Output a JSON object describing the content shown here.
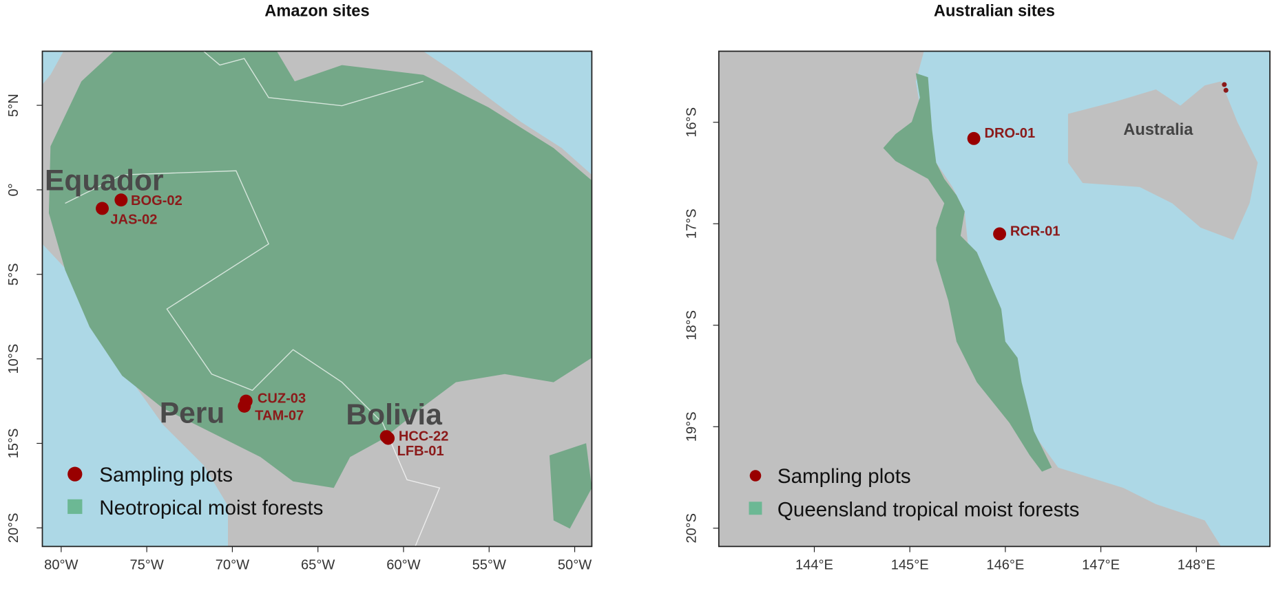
{
  "maps": [
    {
      "title": "Amazon sites",
      "xlim": [
        -81.1,
        -49
      ],
      "ylim": [
        -21.1,
        8.2
      ],
      "xticks": [
        {
          "value": -80,
          "label": "80°W"
        },
        {
          "value": -75,
          "label": "75°W"
        },
        {
          "value": -70,
          "label": "70°W"
        },
        {
          "value": -65,
          "label": "65°W"
        },
        {
          "value": -60,
          "label": "60°W"
        },
        {
          "value": -55,
          "label": "55°W"
        },
        {
          "value": -50,
          "label": "50°W"
        }
      ],
      "yticks": [
        {
          "value": 5,
          "label": "5°N"
        },
        {
          "value": 0,
          "label": "0°"
        },
        {
          "value": -5,
          "label": "5°S"
        },
        {
          "value": -10,
          "label": "10°S"
        },
        {
          "value": -15,
          "label": "15°S"
        },
        {
          "value": -20,
          "label": "20°S"
        }
      ],
      "sites": [
        {
          "name": "BOG-02",
          "lon": -76.5,
          "lat": -0.6
        },
        {
          "name": "JAS-02",
          "lon": -77.6,
          "lat": -1.1
        },
        {
          "name": "CUZ-03",
          "lon": -69.2,
          "lat": -12.5
        },
        {
          "name": "TAM-07",
          "lon": -69.3,
          "lat": -12.8
        },
        {
          "name": "HCC-22",
          "lon": -61.0,
          "lat": -14.6
        },
        {
          "name": "LFB-01",
          "lon": -60.9,
          "lat": -14.7
        }
      ],
      "country_labels": [
        "Equador",
        "Peru",
        "Bolivia"
      ],
      "legend": [
        "Sampling plots",
        "Neotropical moist forests"
      ]
    },
    {
      "title": "Australian sites",
      "xlim": [
        143,
        148.77
      ],
      "ylim": [
        -20.18,
        -15.3
      ],
      "xticks": [
        {
          "value": 144,
          "label": "144°E"
        },
        {
          "value": 145,
          "label": "145°E"
        },
        {
          "value": 146,
          "label": "146°E"
        },
        {
          "value": 147,
          "label": "147°E"
        },
        {
          "value": 148,
          "label": "148°E"
        }
      ],
      "yticks": [
        {
          "value": -16,
          "label": "16°S"
        },
        {
          "value": -17,
          "label": "17°S"
        },
        {
          "value": -18,
          "label": "18°S"
        },
        {
          "value": -19,
          "label": "19°S"
        },
        {
          "value": -20,
          "label": "20°S"
        }
      ],
      "sites": [
        {
          "name": "DRO-01",
          "lon": 145.67,
          "lat": -16.16
        },
        {
          "name": "RCR-01",
          "lon": 145.94,
          "lat": -17.1
        }
      ],
      "country_labels": [
        "Australia"
      ],
      "legend": [
        "Sampling plots",
        "Queensland tropical moist forests"
      ]
    }
  ]
}
